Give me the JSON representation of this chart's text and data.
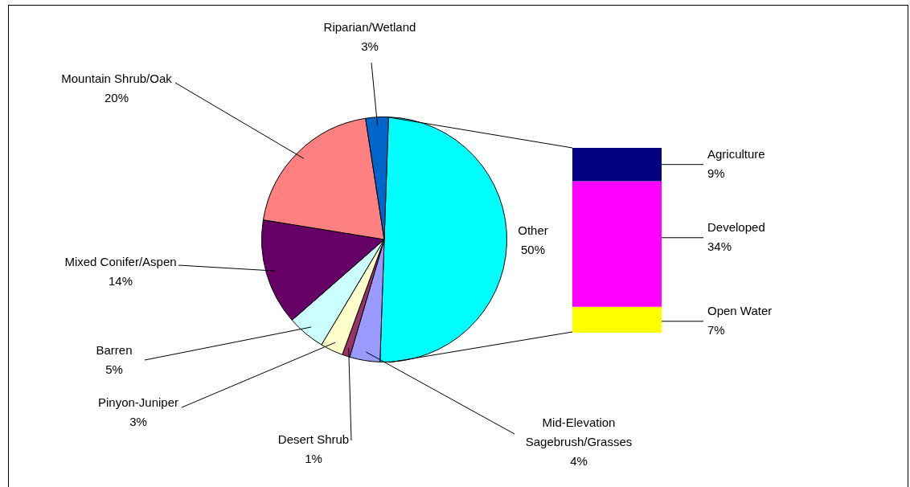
{
  "chart_data": [
    {
      "type": "pie",
      "categories": [
        "Other",
        "Mid-Elevation Sagebrush/Grasses",
        "Desert Shrub",
        "Pinyon-Juniper",
        "Barren",
        "Mixed Conifer/Aspen",
        "Mountain Shrub/Oak",
        "Riparian/Wetland"
      ],
      "values": [
        50,
        4,
        1,
        3,
        5,
        14,
        20,
        3
      ],
      "colors": [
        "#00ffff",
        "#9999ff",
        "#993366",
        "#ffffcc",
        "#ccffff",
        "#660066",
        "#ff8080",
        "#0066cc"
      ],
      "value_labels": [
        "50%",
        "4%",
        "1%",
        "3%",
        "5%",
        "14%",
        "20%",
        "3%"
      ],
      "legend": false
    },
    {
      "type": "bar",
      "stacked": true,
      "tick_labels": false,
      "categories": [
        null
      ],
      "legend": false,
      "series": [
        {
          "name": "Open Water",
          "color": "#ffff00",
          "values": [
            7
          ],
          "value_labels": [
            "7%"
          ]
        },
        {
          "name": "Developed",
          "color": "#ff00ff",
          "values": [
            34
          ],
          "value_labels": [
            "34%"
          ]
        },
        {
          "name": "Agriculture",
          "color": "#000080",
          "values": [
            9
          ],
          "value_labels": [
            "9%"
          ]
        }
      ]
    }
  ]
}
